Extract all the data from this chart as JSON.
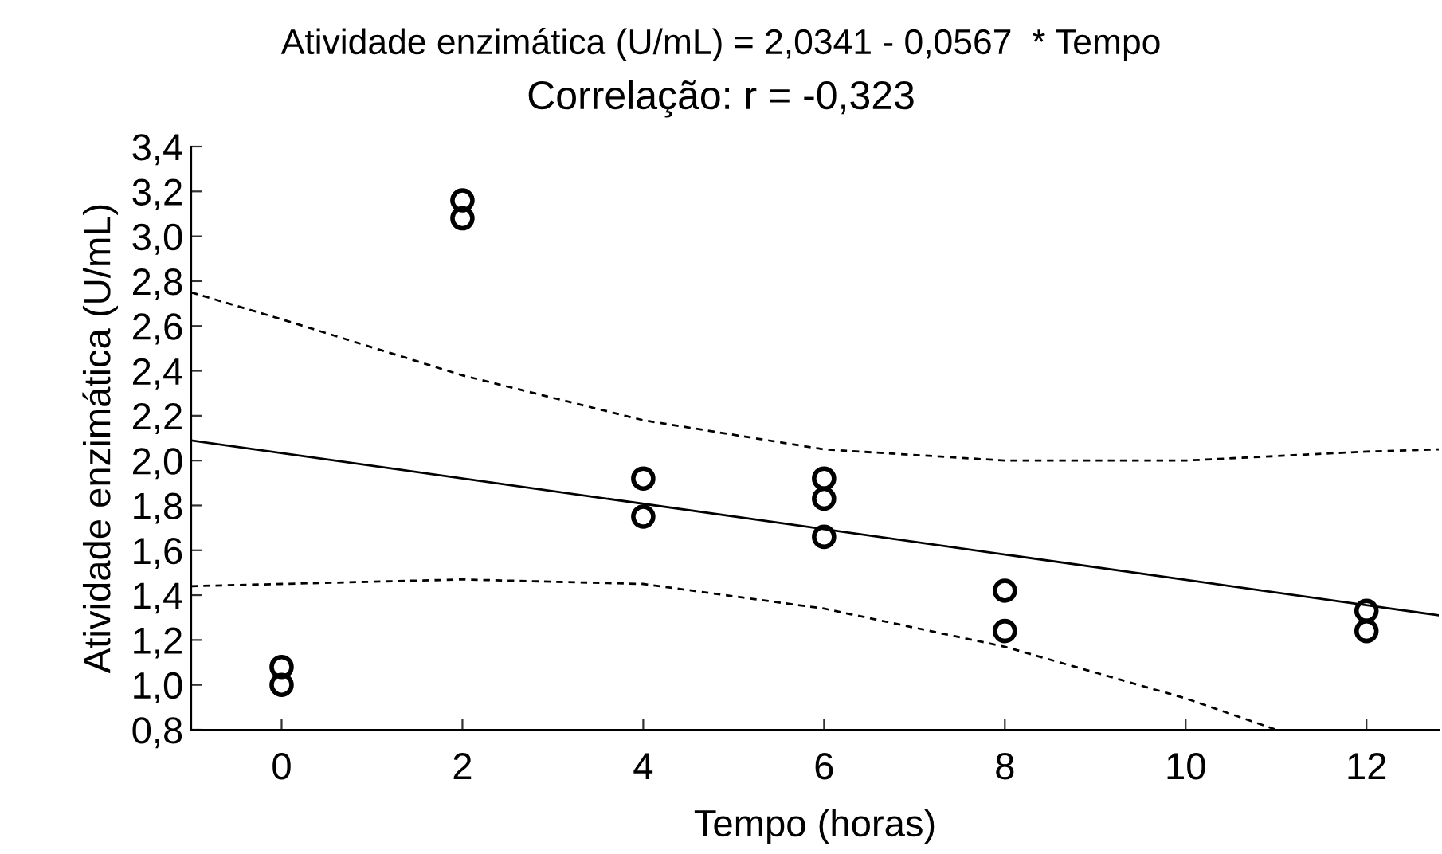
{
  "chart_data": {
    "type": "scatter",
    "title": "Atividade enzimática (U/mL) = 2,0341 - 0,0567  * Tempo",
    "subtitle": "Correlação: r = -0,323",
    "xlabel": "Tempo (horas)",
    "ylabel": "Atividade enzimática (U/mL)",
    "series": [
      {
        "color": "#000000",
        "marker": "circle",
        "x": [
          0,
          0,
          2,
          2,
          4,
          4,
          6,
          6,
          6,
          8,
          8,
          12,
          12
        ],
        "values": [
          1.08,
          1.0,
          3.16,
          3.08,
          1.92,
          1.75,
          1.92,
          1.83,
          1.66,
          1.42,
          1.24,
          1.33,
          1.24
        ]
      },
      {
        "type": "line",
        "color": "#000000",
        "marker": "none",
        "line_style": "solid",
        "x": [
          -1,
          12.8
        ],
        "values": [
          2.09,
          1.31
        ]
      },
      {
        "type": "line",
        "color": "#000000",
        "marker": "none",
        "line_style": "dashed",
        "x": [
          -1,
          0,
          2,
          4,
          6,
          8,
          10,
          12,
          12.8
        ],
        "values": [
          2.75,
          2.63,
          2.38,
          2.18,
          2.05,
          2.0,
          2.0,
          2.04,
          2.05
        ]
      },
      {
        "type": "line",
        "color": "#000000",
        "marker": "none",
        "line_style": "dashed",
        "x": [
          -1,
          0,
          2,
          4,
          6,
          8,
          10,
          11
        ],
        "values": [
          1.44,
          1.45,
          1.47,
          1.45,
          1.34,
          1.17,
          0.94,
          0.8
        ]
      }
    ],
    "xlim": [
      -1,
      12.8
    ],
    "xticks": [
      0,
      2,
      4,
      6,
      8,
      10,
      12
    ],
    "ylim": [
      0.8,
      3.4
    ],
    "yticks": [
      {
        "value": 0.8,
        "label": "0,8"
      },
      {
        "value": 1.0,
        "label": "1,0"
      },
      {
        "value": 1.2,
        "label": "1,2"
      },
      {
        "value": 1.4,
        "label": "1,4"
      },
      {
        "value": 1.6,
        "label": "1,6"
      },
      {
        "value": 1.8,
        "label": "1,8"
      },
      {
        "value": 2.0,
        "label": "2,0"
      },
      {
        "value": 2.2,
        "label": "2,2"
      },
      {
        "value": 2.4,
        "label": "2,4"
      },
      {
        "value": 2.6,
        "label": "2,6"
      },
      {
        "value": 2.8,
        "label": "2,8"
      },
      {
        "value": 3.0,
        "label": "3,0"
      },
      {
        "value": 3.2,
        "label": "3,2"
      },
      {
        "value": 3.4,
        "label": "3,4"
      }
    ],
    "grid": false,
    "legend": false
  }
}
